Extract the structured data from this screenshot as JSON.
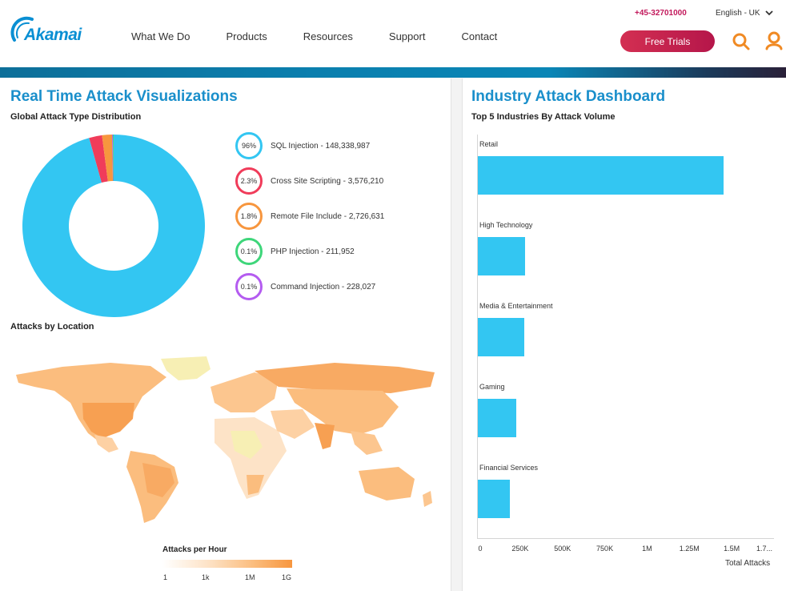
{
  "header": {
    "logo_text": "Akamai",
    "phone": "+45-32701000",
    "language": "English - UK",
    "nav": [
      "What We Do",
      "Products",
      "Resources",
      "Support",
      "Contact"
    ],
    "cta": "Free Trials",
    "colors": {
      "accent": "#0a8fd3",
      "cta": "#c81d4e",
      "icon": "#f08a24"
    }
  },
  "left_panel": {
    "title": "Real Time Attack Visualizations",
    "donut_title": "Global Attack Type Distribution",
    "map_title": "Attacks by Location",
    "map_legend": {
      "title": "Attacks per Hour",
      "ticks": [
        "1",
        "1k",
        "1M",
        "1G"
      ]
    }
  },
  "right_panel": {
    "title": "Industry Attack Dashboard",
    "subtitle": "Top 5 Industries By Attack Volume"
  },
  "chart_data": [
    {
      "type": "pie",
      "title": "Global Attack Type Distribution",
      "slices": [
        {
          "percent_label": "96%",
          "label": "SQL Injection - 148,338,987",
          "value": 148338987,
          "color": "#33c6f2"
        },
        {
          "percent_label": "2.3%",
          "label": "Cross Site Scripting - 3,576,210",
          "value": 3576210,
          "color": "#f03c5a"
        },
        {
          "percent_label": "1.8%",
          "label": "Remote File Include - 2,726,631",
          "value": 2726631,
          "color": "#f7963e"
        },
        {
          "percent_label": "0.1%",
          "label": "PHP Injection - 211,952",
          "value": 211952,
          "color": "#3ed67a"
        },
        {
          "percent_label": "0.1%",
          "label": "Command Injection - 228,027",
          "value": 228027,
          "color": "#b45cf0"
        }
      ]
    },
    {
      "type": "bar",
      "title": "Top 5 Industries By Attack Volume",
      "categories": [
        "Retail",
        "High Technology",
        "Media & Entertainment",
        "Gaming",
        "Financial Services"
      ],
      "values": [
        1450000,
        280000,
        275000,
        225000,
        190000
      ],
      "xlabel": "Total Attacks",
      "xticks": [
        "0",
        "250K",
        "500K",
        "750K",
        "1M",
        "1.25M",
        "1.5M",
        "1.7..."
      ],
      "xlim": [
        0,
        1750000
      ]
    }
  ]
}
